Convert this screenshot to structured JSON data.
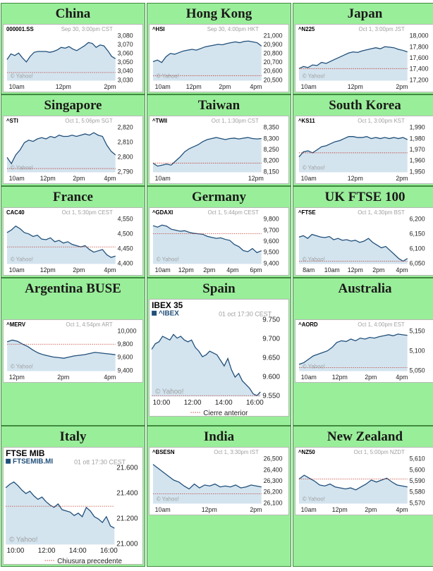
{
  "colors": {
    "cell_bg": "#99ee99",
    "line": "#1f4e79",
    "fill": "#d3e4ef",
    "ref": "#c0392b",
    "meta": "#a0a0a0",
    "text": "#222222"
  },
  "chart_data": [
    {
      "id": "china",
      "panel_title": "China",
      "type": "area",
      "symbol": "000001.SS",
      "timestamp": "Sep 30, 3:00pm CST",
      "xlabels": [
        "10am",
        "12pm",
        "2pm"
      ],
      "ylabels": [
        "3,080",
        "3,070",
        "3,060",
        "3,050",
        "3,040",
        "3,030"
      ],
      "ylim": [
        3027,
        3085
      ],
      "prev_close": 3037,
      "watermark": "© Yahoo!",
      "values": [
        3053,
        3060,
        3058,
        3061,
        3055,
        3050,
        3057,
        3062,
        3063,
        3063,
        3063,
        3062,
        3063,
        3065,
        3068,
        3067,
        3069,
        3066,
        3064,
        3067,
        3070,
        3074,
        3073,
        3068,
        3071,
        3070,
        3064,
        3057,
        3054
      ]
    },
    {
      "id": "hongkong",
      "panel_title": "Hong Kong",
      "type": "area",
      "symbol": "^HSI",
      "timestamp": "Sep 30, 4:00pm HKT",
      "xlabels": [
        "10am",
        "12pm",
        "2pm",
        "4pm"
      ],
      "ylabels": [
        "21,000",
        "20,900",
        "20,800",
        "20,700",
        "20,600",
        "20,500"
      ],
      "ylim": [
        20470,
        21040
      ],
      "prev_close": 20530,
      "watermark": "© Yahoo!",
      "values": [
        20700,
        20720,
        20690,
        20760,
        20800,
        20790,
        20810,
        20830,
        20840,
        20850,
        20840,
        20860,
        20880,
        20890,
        20900,
        20910,
        20905,
        20920,
        20930,
        20940,
        20930,
        20945,
        20950,
        20940,
        20930,
        20890
      ]
    },
    {
      "id": "japan",
      "panel_title": "Japan",
      "type": "area",
      "symbol": "^N225",
      "timestamp": "Oct 1, 3:00pm JST",
      "xlabels": [
        "10am",
        "12pm",
        "2pm"
      ],
      "ylabels": [
        "18,000",
        "17,800",
        "17,600",
        "17,400",
        "17,200"
      ],
      "ylim": [
        17150,
        18050
      ],
      "prev_close": 17380,
      "watermark": "© Yahoo!",
      "values": [
        17380,
        17420,
        17400,
        17450,
        17440,
        17500,
        17480,
        17520,
        17560,
        17600,
        17640,
        17680,
        17700,
        17690,
        17720,
        17740,
        17760,
        17780,
        17760,
        17800,
        17790,
        17780,
        17750,
        17730,
        17700
      ]
    },
    {
      "id": "singapore",
      "panel_title": "Singapore",
      "type": "area",
      "symbol": "^STI",
      "timestamp": "Oct 1, 5:06pm SGT",
      "xlabels": [
        "10am",
        "12pm",
        "2pm",
        "4pm"
      ],
      "ylabels": [
        "2,820",
        "2,810",
        "2,800",
        "2,790"
      ],
      "ylim": [
        2786,
        2824
      ],
      "prev_close": 2789,
      "watermark": "© Yahoo!",
      "values": [
        2798,
        2793,
        2800,
        2804,
        2810,
        2812,
        2811,
        2813,
        2814,
        2813,
        2815,
        2814,
        2816,
        2815,
        2815,
        2816,
        2815,
        2816,
        2817,
        2816,
        2818,
        2816,
        2815,
        2808,
        2803,
        2800
      ]
    },
    {
      "id": "taiwan",
      "panel_title": "Taiwan",
      "type": "area",
      "symbol": "^TWII",
      "timestamp": "Oct 1, 1:30pm CST",
      "xlabels": [
        "10am",
        "12pm"
      ],
      "ylabels": [
        "8,350",
        "8,300",
        "8,250",
        "8,200",
        "8,150"
      ],
      "ylim": [
        8135,
        8365
      ],
      "prev_close": 8180,
      "watermark": "",
      "values": [
        8180,
        8165,
        8170,
        8175,
        8170,
        8190,
        8210,
        8235,
        8250,
        8260,
        8270,
        8285,
        8295,
        8300,
        8305,
        8300,
        8295,
        8300,
        8302,
        8298,
        8302,
        8305,
        8300,
        8298,
        8300
      ]
    },
    {
      "id": "southkorea",
      "panel_title": "South Korea",
      "type": "area",
      "symbol": "^KS11",
      "timestamp": "Oct 1, 3:00pm KST",
      "xlabels": [
        "10am",
        "12pm",
        "2pm"
      ],
      "ylabels": [
        "1,990",
        "1,980",
        "1,970",
        "1,960",
        "1,950"
      ],
      "ylim": [
        1947,
        1993
      ],
      "prev_close": 1966,
      "watermark": "© Yahoo!",
      "values": [
        1962,
        1967,
        1968,
        1966,
        1969,
        1972,
        1973,
        1975,
        1977,
        1978,
        1980,
        1982,
        1982,
        1981,
        1981,
        1982,
        1980,
        1981,
        1980,
        1981,
        1980,
        1981,
        1980,
        1981,
        1979
      ]
    },
    {
      "id": "france",
      "panel_title": "France",
      "type": "area",
      "symbol": "CAC40",
      "timestamp": "Oct 1, 5:30pm CEST",
      "xlabels": [
        "10am",
        "12pm",
        "2pm",
        "4pm"
      ],
      "ylabels": [
        "4,550",
        "4,500",
        "4,450",
        "4,400"
      ],
      "ylim": [
        4385,
        4565
      ],
      "prev_close": 4450,
      "watermark": "© Yahoo!",
      "values": [
        4505,
        4515,
        4530,
        4520,
        4505,
        4500,
        4490,
        4495,
        4480,
        4478,
        4485,
        4470,
        4475,
        4465,
        4470,
        4460,
        4455,
        4450,
        4455,
        4440,
        4430,
        4435,
        4440,
        4420,
        4410,
        4415
      ]
    },
    {
      "id": "germany",
      "panel_title": "Germany",
      "type": "area",
      "symbol": "^GDAXI",
      "timestamp": "Oct 1, 5:44pm CEST",
      "xlabels": [
        "10am",
        "12pm",
        "2pm",
        "4pm",
        "6pm"
      ],
      "ylabels": [
        "9,800",
        "9,700",
        "9,600",
        "9,500",
        "9,400"
      ],
      "ylim": [
        9370,
        9830
      ],
      "prev_close": 9665,
      "watermark": "© Yahoo!",
      "values": [
        9745,
        9730,
        9750,
        9740,
        9710,
        9700,
        9690,
        9695,
        9680,
        9670,
        9665,
        9660,
        9640,
        9630,
        9620,
        9625,
        9610,
        9600,
        9560,
        9540,
        9500,
        9490,
        9520,
        9480,
        9500
      ]
    },
    {
      "id": "uk",
      "panel_title": "UK FTSE 100",
      "type": "area",
      "symbol": "^FTSE",
      "timestamp": "Oct 1, 4:30pm BST",
      "xlabels": [
        "8am",
        "10am",
        "12pm",
        "2pm",
        "4pm"
      ],
      "ylabels": [
        "6,200",
        "6,150",
        "6,100",
        "6,050"
      ],
      "ylim": [
        6040,
        6215
      ],
      "prev_close": 6050,
      "watermark": "© Yahoo!",
      "values": [
        6140,
        6145,
        6135,
        6150,
        6145,
        6140,
        6138,
        6142,
        6130,
        6135,
        6128,
        6130,
        6125,
        6128,
        6120,
        6125,
        6135,
        6120,
        6110,
        6100,
        6105,
        6090,
        6075,
        6060,
        6050,
        6060
      ]
    },
    {
      "id": "argentina",
      "panel_title": "Argentina BUSE",
      "type": "area",
      "symbol": "^MERV",
      "timestamp": "Oct 1, 4:54pm ART",
      "xlabels": [
        "12pm",
        "2pm",
        "4pm"
      ],
      "ylabels": [
        "10,000",
        "9,800",
        "9,600",
        "9,400"
      ],
      "ylim": [
        9340,
        10060
      ],
      "prev_close": 9800,
      "watermark": "© Yahoo!",
      "values": [
        9840,
        9870,
        9850,
        9800,
        9760,
        9700,
        9650,
        9620,
        9600,
        9580,
        9570,
        9560,
        9580,
        9600,
        9610,
        9620,
        9640,
        9660,
        9650,
        9640,
        9630,
        9620
      ]
    },
    {
      "id": "spain",
      "panel_title": "Spain",
      "type": "area",
      "big": true,
      "name": "IBEX 35",
      "symbol": "^IBEX",
      "timestamp": "01 oct 17:30 CEST",
      "xlabels": [
        "10:00",
        "12:00",
        "14:00",
        "16:00"
      ],
      "ylabels": [
        "9.750",
        "9.700",
        "9.650",
        "9.600",
        "9.550"
      ],
      "ylim": [
        9548,
        9760
      ],
      "prev_close": 9550,
      "watermark": "© Yahoo!",
      "footer": "Cierre anterior",
      "values": [
        9675,
        9690,
        9695,
        9710,
        9705,
        9700,
        9715,
        9705,
        9710,
        9700,
        9695,
        9700,
        9680,
        9670,
        9655,
        9660,
        9670,
        9665,
        9660,
        9645,
        9630,
        9650,
        9620,
        9600,
        9610,
        9590,
        9580,
        9570,
        9555,
        9550,
        9560
      ]
    },
    {
      "id": "australia",
      "panel_title": "Australia",
      "type": "area",
      "symbol": "^AORD",
      "timestamp": "Oct 1, 4:00pm EST",
      "xlabels": [
        "10am",
        "12pm",
        "2pm",
        "4pm"
      ],
      "ylabels": [
        "5,150",
        "5,100",
        "5,050"
      ],
      "ylim": [
        5040,
        5165
      ],
      "prev_close": 5050,
      "watermark": "© Yahoo!",
      "values": [
        5060,
        5065,
        5075,
        5085,
        5090,
        5095,
        5100,
        5110,
        5125,
        5130,
        5128,
        5135,
        5130,
        5138,
        5135,
        5140,
        5138,
        5142,
        5145,
        5148,
        5145,
        5150,
        5148,
        5146
      ]
    },
    {
      "id": "italy",
      "panel_title": "Italy",
      "type": "area",
      "big": true,
      "name": "FTSE MIB",
      "symbol": "FTSEMIB.MI",
      "timestamp": "01 ott 17:30 CEST",
      "xlabels": [
        "10:00",
        "12:00",
        "14:00",
        "16:00"
      ],
      "ylabels": [
        "21.600",
        "21.400",
        "21.200",
        "21.000"
      ],
      "ylim": [
        20960,
        21640
      ],
      "prev_close": 21290,
      "watermark": "© Yahoo!",
      "footer": "Chiusura precedente",
      "values": [
        21450,
        21480,
        21500,
        21470,
        21430,
        21400,
        21420,
        21380,
        21350,
        21370,
        21330,
        21300,
        21280,
        21310,
        21260,
        21250,
        21240,
        21210,
        21230,
        21200,
        21280,
        21250,
        21200,
        21180,
        21150,
        21200,
        21120,
        21100
      ]
    },
    {
      "id": "india",
      "panel_title": "India",
      "type": "area",
      "symbol": "^BSESN",
      "timestamp": "Oct 1, 3:30pm IST",
      "xlabels": [
        "10am",
        "12pm",
        "2pm"
      ],
      "ylabels": [
        "26,500",
        "26,400",
        "26,300",
        "26,200",
        "26,100"
      ],
      "ylim": [
        26060,
        26540
      ],
      "prev_close": 26160,
      "watermark": "© Yahoo!",
      "values": [
        26460,
        26420,
        26380,
        26340,
        26300,
        26280,
        26240,
        26210,
        26260,
        26220,
        26250,
        26240,
        26260,
        26230,
        26240,
        26230,
        26250,
        26220,
        26230,
        26250,
        26240,
        26230
      ]
    },
    {
      "id": "newzealand",
      "panel_title": "New Zealand",
      "type": "area",
      "symbol": "^NZ50",
      "timestamp": "Oct 1, 5:00pm NZDT",
      "xlabels": [
        "10am",
        "12pm",
        "2pm",
        "4pm"
      ],
      "ylabels": [
        "5,610",
        "5,600",
        "5,590",
        "5,580",
        "5,570"
      ],
      "ylim": [
        5566,
        5614
      ],
      "prev_close": 5591,
      "watermark": "© Yahoo!",
      "values": [
        5591,
        5595,
        5592,
        5589,
        5585,
        5584,
        5586,
        5583,
        5582,
        5581,
        5582,
        5580,
        5583,
        5586,
        5590,
        5588,
        5590,
        5592,
        5588,
        5585,
        5584,
        5583
      ]
    }
  ]
}
